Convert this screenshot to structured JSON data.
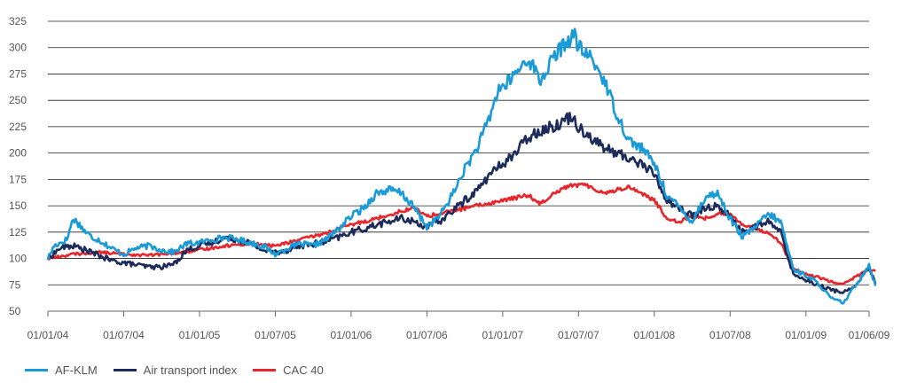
{
  "chart_data": {
    "type": "line",
    "title": "",
    "xlabel": "",
    "ylabel": "",
    "ylim": [
      50,
      325
    ],
    "y_ticks": [
      50,
      75,
      100,
      125,
      150,
      175,
      200,
      225,
      250,
      275,
      300,
      325
    ],
    "x_ticks": [
      "01/01/04",
      "01/07/04",
      "01/01/05",
      "01/07/05",
      "01/01/06",
      "01/07/06",
      "01/01/07",
      "01/07/07",
      "01/01/08",
      "01/07/08",
      "01/01/09",
      "01/06/09"
    ],
    "x_unit": "month index from 01/01/04",
    "x_tick_positions": [
      0,
      6,
      12,
      18,
      24,
      30,
      36,
      42,
      48,
      54,
      60,
      65
    ],
    "grid": "horizontal",
    "legend_position": "bottom-left",
    "series": [
      {
        "name": "AF-KLM",
        "color": "#1a9ad6",
        "points": [
          [
            0,
            100
          ],
          [
            0.5,
            112
          ],
          [
            1,
            115
          ],
          [
            1.5,
            118
          ],
          [
            2,
            138
          ],
          [
            2.5,
            132
          ],
          [
            3,
            125
          ],
          [
            3.5,
            120
          ],
          [
            4,
            118
          ],
          [
            5,
            110
          ],
          [
            6,
            104
          ],
          [
            7,
            110
          ],
          [
            8,
            112
          ],
          [
            9,
            108
          ],
          [
            10,
            106
          ],
          [
            11,
            114
          ],
          [
            12,
            115
          ],
          [
            13,
            118
          ],
          [
            14,
            120
          ],
          [
            15,
            118
          ],
          [
            16,
            115
          ],
          [
            17,
            112
          ],
          [
            18,
            104
          ],
          [
            19,
            110
          ],
          [
            20,
            114
          ],
          [
            21,
            112
          ],
          [
            22,
            118
          ],
          [
            23,
            128
          ],
          [
            24,
            140
          ],
          [
            25,
            148
          ],
          [
            26,
            162
          ],
          [
            27,
            165
          ],
          [
            28,
            162
          ],
          [
            29,
            148
          ],
          [
            30,
            130
          ],
          [
            31,
            140
          ],
          [
            32,
            160
          ],
          [
            33,
            185
          ],
          [
            34,
            205
          ],
          [
            35,
            235
          ],
          [
            35.7,
            262
          ],
          [
            36,
            262
          ],
          [
            37,
            275
          ],
          [
            38,
            290
          ],
          [
            38.5,
            280
          ],
          [
            39,
            268
          ],
          [
            40,
            290
          ],
          [
            41,
            305
          ],
          [
            41.7,
            312
          ],
          [
            42,
            300
          ],
          [
            43,
            290
          ],
          [
            44,
            270
          ],
          [
            45,
            238
          ],
          [
            46,
            212
          ],
          [
            47,
            205
          ],
          [
            48,
            190
          ],
          [
            49,
            160
          ],
          [
            50,
            148
          ],
          [
            51,
            135
          ],
          [
            52,
            158
          ],
          [
            53,
            162
          ],
          [
            54,
            138
          ],
          [
            55,
            120
          ],
          [
            56,
            130
          ],
          [
            57,
            142
          ],
          [
            58,
            135
          ],
          [
            59,
            90
          ],
          [
            60,
            84
          ],
          [
            61,
            76
          ],
          [
            62,
            62
          ],
          [
            63,
            58
          ],
          [
            64,
            76
          ],
          [
            65,
            94
          ],
          [
            65.5,
            74
          ]
        ]
      },
      {
        "name": "Air transport index",
        "color": "#1c2b5a",
        "points": [
          [
            0,
            100
          ],
          [
            1,
            110
          ],
          [
            2,
            112
          ],
          [
            3,
            108
          ],
          [
            4,
            103
          ],
          [
            5,
            98
          ],
          [
            6,
            96
          ],
          [
            7,
            94
          ],
          [
            8,
            92
          ],
          [
            9,
            92
          ],
          [
            10,
            95
          ],
          [
            11,
            108
          ],
          [
            12,
            112
          ],
          [
            13,
            115
          ],
          [
            14,
            120
          ],
          [
            15,
            118
          ],
          [
            16,
            115
          ],
          [
            17,
            108
          ],
          [
            18,
            106
          ],
          [
            19,
            108
          ],
          [
            20,
            112
          ],
          [
            21,
            114
          ],
          [
            22,
            116
          ],
          [
            23,
            120
          ],
          [
            24,
            125
          ],
          [
            25,
            128
          ],
          [
            26,
            132
          ],
          [
            27,
            135
          ],
          [
            28,
            138
          ],
          [
            29,
            135
          ],
          [
            30,
            130
          ],
          [
            31,
            135
          ],
          [
            32,
            145
          ],
          [
            33,
            155
          ],
          [
            34,
            165
          ],
          [
            35,
            180
          ],
          [
            36,
            190
          ],
          [
            37,
            200
          ],
          [
            38,
            215
          ],
          [
            39,
            222
          ],
          [
            40,
            225
          ],
          [
            41,
            232
          ],
          [
            41.5,
            235
          ],
          [
            42,
            225
          ],
          [
            43,
            215
          ],
          [
            44,
            205
          ],
          [
            45,
            200
          ],
          [
            46,
            195
          ],
          [
            47,
            190
          ],
          [
            48,
            180
          ],
          [
            49,
            155
          ],
          [
            50,
            148
          ],
          [
            51,
            140
          ],
          [
            52,
            148
          ],
          [
            53,
            150
          ],
          [
            54,
            140
          ],
          [
            55,
            125
          ],
          [
            56,
            130
          ],
          [
            57,
            135
          ],
          [
            58,
            125
          ],
          [
            59,
            85
          ],
          [
            60,
            80
          ],
          [
            61,
            75
          ],
          [
            62,
            70
          ],
          [
            63,
            68
          ],
          [
            64,
            75
          ],
          [
            65,
            92
          ],
          [
            65.5,
            76
          ]
        ]
      },
      {
        "name": "CAC 40",
        "color": "#e8252a",
        "points": [
          [
            0,
            100
          ],
          [
            2,
            104
          ],
          [
            4,
            106
          ],
          [
            6,
            104
          ],
          [
            8,
            103
          ],
          [
            10,
            105
          ],
          [
            12,
            108
          ],
          [
            14,
            112
          ],
          [
            16,
            114
          ],
          [
            18,
            112
          ],
          [
            20,
            118
          ],
          [
            22,
            124
          ],
          [
            24,
            132
          ],
          [
            26,
            138
          ],
          [
            28,
            145
          ],
          [
            29,
            148
          ],
          [
            30,
            140
          ],
          [
            32,
            145
          ],
          [
            34,
            150
          ],
          [
            36,
            155
          ],
          [
            38,
            160
          ],
          [
            39,
            152
          ],
          [
            40,
            162
          ],
          [
            41,
            168
          ],
          [
            42,
            170
          ],
          [
            43,
            168
          ],
          [
            44,
            162
          ],
          [
            45,
            165
          ],
          [
            46,
            168
          ],
          [
            47,
            162
          ],
          [
            48,
            155
          ],
          [
            49,
            138
          ],
          [
            50,
            135
          ],
          [
            51,
            140
          ],
          [
            52,
            138
          ],
          [
            53,
            142
          ],
          [
            54,
            143
          ],
          [
            55,
            132
          ],
          [
            56,
            128
          ],
          [
            57,
            125
          ],
          [
            58,
            115
          ],
          [
            59,
            90
          ],
          [
            60,
            85
          ],
          [
            61,
            82
          ],
          [
            62,
            78
          ],
          [
            63,
            76
          ],
          [
            64,
            83
          ],
          [
            65,
            90
          ],
          [
            65.5,
            88
          ]
        ]
      }
    ]
  },
  "legend": {
    "items": [
      {
        "label": "AF-KLM",
        "color": "#1a9ad6"
      },
      {
        "label": "Air transport index",
        "color": "#1c2b5a"
      },
      {
        "label": "CAC 40",
        "color": "#e8252a"
      }
    ]
  }
}
